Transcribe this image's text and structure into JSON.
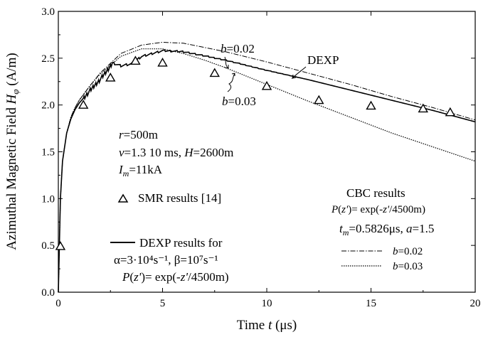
{
  "chart_data": {
    "type": "line",
    "xlabel": "Time t (μs)",
    "ylabel": "Azimuthal Magnetic Field Hφ (A/m)",
    "xlim": [
      0,
      20
    ],
    "ylim": [
      0.0,
      3.0
    ],
    "xticks": [
      "0",
      "5",
      "10",
      "15",
      "20"
    ],
    "yticks": [
      "0.0",
      "0.5",
      "1.0",
      "1.5",
      "2.0",
      "2.5",
      "3.0"
    ],
    "grid": false,
    "series": [
      {
        "name": "DEXP",
        "style": "solid",
        "x": [
          0,
          0.1,
          0.2,
          0.4,
          0.6,
          0.8,
          1.0,
          1.5,
          2.0,
          2.4,
          2.6,
          3.0,
          3.5,
          4.0,
          5.0,
          6.0,
          8.0,
          10.0,
          12.0,
          14.0,
          16.0,
          18.0,
          20.0
        ],
        "y": [
          0.0,
          1.0,
          1.4,
          1.7,
          1.85,
          1.95,
          2.02,
          2.15,
          2.27,
          2.38,
          2.45,
          2.42,
          2.44,
          2.52,
          2.58,
          2.57,
          2.48,
          2.37,
          2.27,
          2.16,
          2.05,
          1.94,
          1.82
        ]
      },
      {
        "name": "b=0.02",
        "style": "dash-dot",
        "x": [
          0,
          0.1,
          0.2,
          0.4,
          0.6,
          0.8,
          1.0,
          1.5,
          2.0,
          3.0,
          4.0,
          5.0,
          6.0,
          8.0,
          10.0,
          12.0,
          14.0,
          16.0,
          18.0,
          20.0
        ],
        "y": [
          0.0,
          1.0,
          1.4,
          1.7,
          1.87,
          1.97,
          2.05,
          2.2,
          2.34,
          2.55,
          2.64,
          2.67,
          2.66,
          2.57,
          2.46,
          2.34,
          2.22,
          2.09,
          1.97,
          1.84
        ]
      },
      {
        "name": "b=0.03",
        "style": "dotted",
        "x": [
          0,
          0.1,
          0.2,
          0.4,
          0.6,
          0.8,
          1.0,
          1.5,
          2.0,
          3.0,
          4.0,
          5.0,
          6.0,
          7.0,
          8.0,
          10.0,
          12.0,
          14.0,
          16.0,
          18.0,
          20.0
        ],
        "y": [
          0.0,
          1.0,
          1.4,
          1.7,
          1.87,
          1.97,
          2.05,
          2.2,
          2.33,
          2.52,
          2.6,
          2.6,
          2.55,
          2.48,
          2.4,
          2.22,
          2.04,
          1.87,
          1.7,
          1.55,
          1.4
        ]
      },
      {
        "name": "SMR results [14]",
        "style": "triangle-markers",
        "x": [
          0.1,
          1.2,
          2.5,
          3.7,
          5.0,
          7.5,
          10.0,
          12.5,
          15.0,
          17.5,
          18.8
        ],
        "y": [
          0.49,
          2.0,
          2.29,
          2.47,
          2.45,
          2.34,
          2.2,
          2.05,
          1.99,
          1.96,
          1.92
        ]
      }
    ],
    "annotations": {
      "b002": "b=0.02",
      "b003": "b=0.03",
      "dexp": "DEXP",
      "params_r": "r=500m",
      "params_v": "v=1.3 10 ms, H=2600m",
      "params_im": "Im=11kA",
      "smr_legend": "SMR results [14]",
      "cbc_title": "CBC results",
      "cbc_pz": "P(z')= exp(-z'/4500m)",
      "cbc_params": "tm=0.5826μs, a=1.5",
      "legend_b002": "b=0.02",
      "legend_b003": "b=0.03",
      "dexp_title": "DEXP results for",
      "dexp_params": "α=3·10⁴s⁻¹, β=10⁷s⁻¹",
      "dexp_pz": "P(z')= exp(-z'/4500m)"
    }
  }
}
